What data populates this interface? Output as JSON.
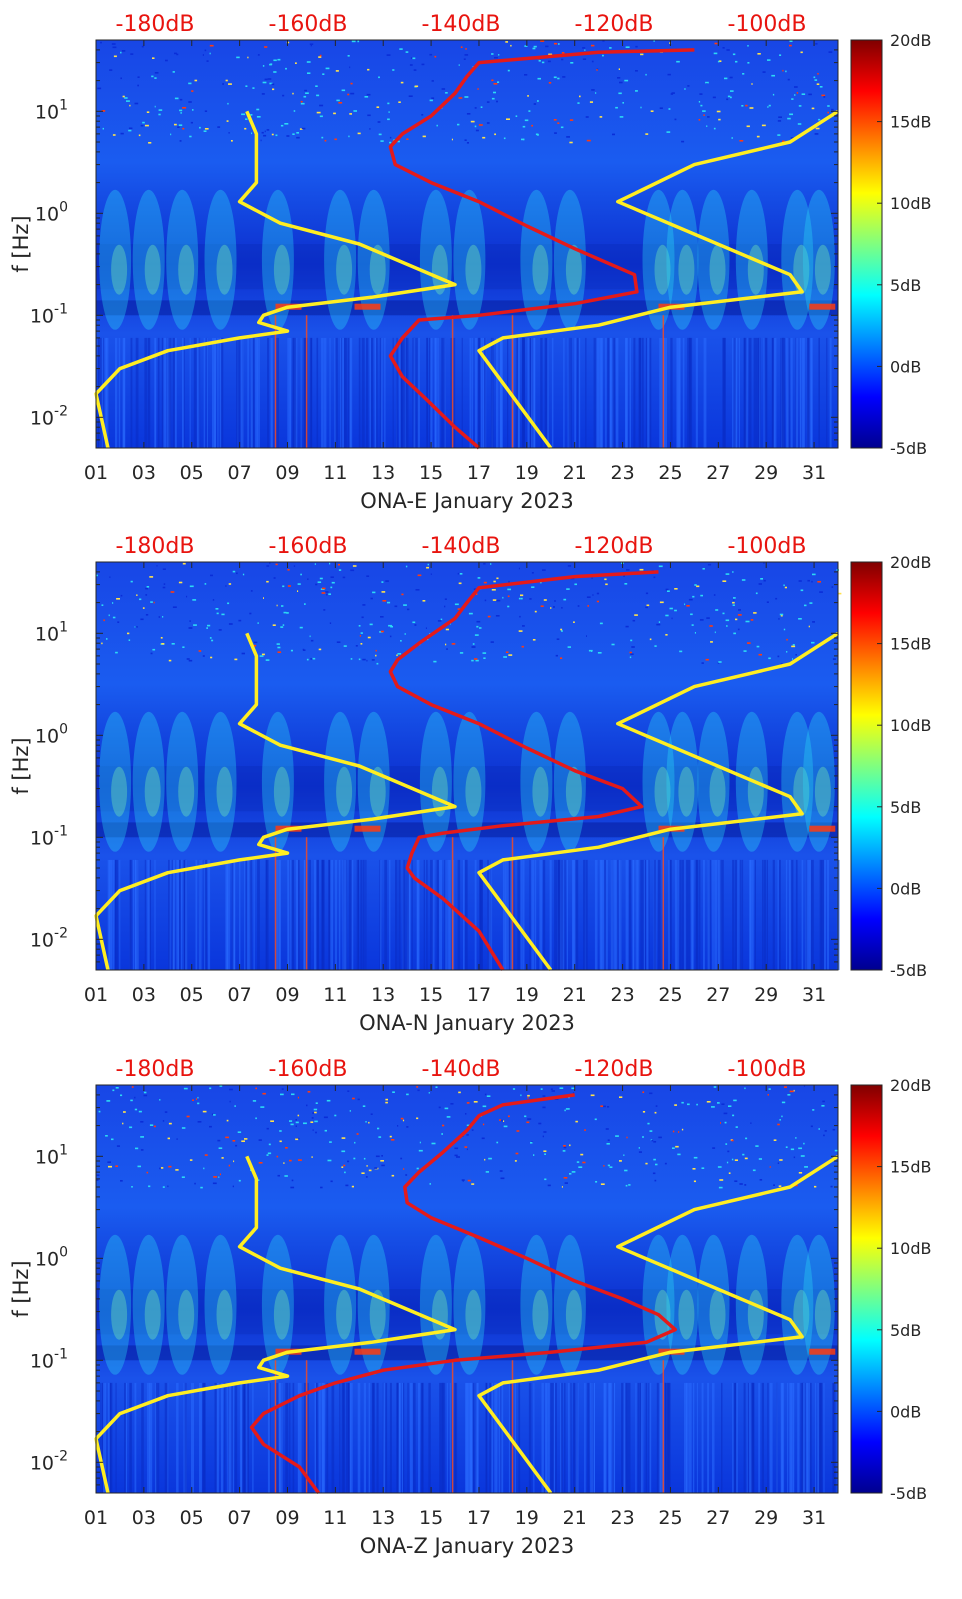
{
  "chart_data": [
    {
      "type": "heatmap",
      "title": "",
      "xlabel": "ONA-E January 2023",
      "ylabel": "f [Hz]",
      "x_ticks": [
        "01",
        "03",
        "05",
        "07",
        "09",
        "11",
        "13",
        "15",
        "17",
        "19",
        "21",
        "23",
        "25",
        "27",
        "29",
        "31"
      ],
      "x_range": [
        1,
        32
      ],
      "y_scale": "log",
      "y_range": [
        0.005,
        50
      ],
      "y_ticks": [
        {
          "value": 10,
          "base": "10",
          "exp": "1"
        },
        {
          "value": 1,
          "base": "10",
          "exp": "0"
        },
        {
          "value": 0.1,
          "base": "10",
          "exp": "-1"
        },
        {
          "value": 0.01,
          "base": "10",
          "exp": "-2"
        }
      ],
      "top_axis": {
        "labels": [
          "-180dB",
          "-160dB",
          "-140dB",
          "-120dB",
          "-100dB"
        ],
        "color": "#e8140f"
      },
      "colorbar": {
        "range": [
          -5,
          20
        ],
        "labels": [
          "20dB",
          "15dB",
          "10dB",
          "5dB",
          "0dB",
          "-5dB"
        ]
      },
      "colors": {
        "background": "#0a2ed8",
        "hot": "#ff3b0f",
        "mid": "#2bd9f5",
        "red_curve": "#e41a1a",
        "yellow_curve": "#ffee22"
      },
      "curves": {
        "red_psd": [
          [
            26,
            40
          ],
          [
            22,
            38
          ],
          [
            17,
            30
          ],
          [
            16.5,
            22
          ],
          [
            16,
            15
          ],
          [
            15,
            9
          ],
          [
            13.8,
            6
          ],
          [
            13.3,
            4.5
          ],
          [
            13.5,
            3
          ],
          [
            15,
            2
          ],
          [
            17,
            1.3
          ],
          [
            19,
            0.75
          ],
          [
            21,
            0.45
          ],
          [
            23.5,
            0.25
          ],
          [
            23.6,
            0.17
          ],
          [
            21,
            0.13
          ],
          [
            17,
            0.1
          ],
          [
            14.5,
            0.09
          ],
          [
            13.8,
            0.06
          ],
          [
            13.3,
            0.04
          ],
          [
            13.8,
            0.025
          ],
          [
            14.8,
            0.015
          ],
          [
            16,
            0.008
          ],
          [
            17,
            0.005
          ]
        ],
        "yellow_lnm": [
          [
            7.3,
            10
          ],
          [
            7.7,
            6
          ],
          [
            7.7,
            3
          ],
          [
            7.7,
            2
          ],
          [
            7,
            1.3
          ],
          [
            8.7,
            0.8
          ],
          [
            12,
            0.5
          ],
          [
            16,
            0.2
          ],
          [
            12.5,
            0.15
          ],
          [
            9,
            0.12
          ],
          [
            8,
            0.1
          ],
          [
            7.8,
            0.085
          ],
          [
            9,
            0.07
          ],
          [
            7,
            0.06
          ],
          [
            4,
            0.045
          ],
          [
            2,
            0.03
          ],
          [
            1,
            0.017
          ],
          [
            1.5,
            0.005
          ]
        ],
        "yellow_hnm": [
          [
            32,
            10
          ],
          [
            30,
            5
          ],
          [
            26,
            3
          ],
          [
            22.8,
            1.3
          ],
          [
            30,
            0.25
          ],
          [
            30.5,
            0.17
          ],
          [
            25,
            0.12
          ],
          [
            22,
            0.08
          ],
          [
            18,
            0.06
          ],
          [
            17,
            0.045
          ],
          [
            20,
            0.005
          ]
        ]
      }
    },
    {
      "type": "heatmap",
      "title": "",
      "xlabel": "ONA-N January 2023",
      "ylabel": "f [Hz]",
      "x_ticks": [
        "01",
        "03",
        "05",
        "07",
        "09",
        "11",
        "13",
        "15",
        "17",
        "19",
        "21",
        "23",
        "25",
        "27",
        "29",
        "31"
      ],
      "x_range": [
        1,
        32
      ],
      "y_scale": "log",
      "y_range": [
        0.005,
        50
      ],
      "y_ticks": [
        {
          "value": 10,
          "base": "10",
          "exp": "1"
        },
        {
          "value": 1,
          "base": "10",
          "exp": "0"
        },
        {
          "value": 0.1,
          "base": "10",
          "exp": "-1"
        },
        {
          "value": 0.01,
          "base": "10",
          "exp": "-2"
        }
      ],
      "top_axis": {
        "labels": [
          "-180dB",
          "-160dB",
          "-140dB",
          "-120dB",
          "-100dB"
        ],
        "color": "#e8140f"
      },
      "colorbar": {
        "range": [
          -5,
          20
        ],
        "labels": [
          "20dB",
          "15dB",
          "10dB",
          "5dB",
          "0dB",
          "-5dB"
        ]
      },
      "colors": {
        "background": "#0a2ed8",
        "hot": "#ff3b0f",
        "mid": "#2bd9f5",
        "red_curve": "#e41a1a",
        "yellow_curve": "#ffee22"
      },
      "curves": {
        "red_psd": [
          [
            24.5,
            40
          ],
          [
            21,
            36
          ],
          [
            17,
            28
          ],
          [
            16.5,
            20
          ],
          [
            16,
            14
          ],
          [
            14.5,
            8
          ],
          [
            13.6,
            5.5
          ],
          [
            13.3,
            4.2
          ],
          [
            13.6,
            3
          ],
          [
            15,
            2
          ],
          [
            17,
            1.3
          ],
          [
            19,
            0.75
          ],
          [
            21,
            0.45
          ],
          [
            23,
            0.3
          ],
          [
            23.8,
            0.2
          ],
          [
            22,
            0.16
          ],
          [
            18,
            0.13
          ],
          [
            15.5,
            0.11
          ],
          [
            14.5,
            0.1
          ],
          [
            14.2,
            0.07
          ],
          [
            14,
            0.05
          ],
          [
            14.3,
            0.04
          ],
          [
            15.5,
            0.025
          ],
          [
            17,
            0.012
          ],
          [
            18,
            0.005
          ]
        ],
        "yellow_lnm": [
          [
            7.3,
            10
          ],
          [
            7.7,
            6
          ],
          [
            7.7,
            3
          ],
          [
            7.7,
            2
          ],
          [
            7,
            1.3
          ],
          [
            8.7,
            0.8
          ],
          [
            12,
            0.5
          ],
          [
            16,
            0.2
          ],
          [
            12.5,
            0.15
          ],
          [
            9,
            0.12
          ],
          [
            8,
            0.1
          ],
          [
            7.8,
            0.085
          ],
          [
            9,
            0.07
          ],
          [
            7,
            0.06
          ],
          [
            4,
            0.045
          ],
          [
            2,
            0.03
          ],
          [
            1,
            0.017
          ],
          [
            1.5,
            0.005
          ]
        ],
        "yellow_hnm": [
          [
            32,
            10
          ],
          [
            30,
            5
          ],
          [
            26,
            3
          ],
          [
            22.8,
            1.3
          ],
          [
            30,
            0.25
          ],
          [
            30.5,
            0.17
          ],
          [
            25,
            0.12
          ],
          [
            22,
            0.08
          ],
          [
            18,
            0.06
          ],
          [
            17,
            0.045
          ],
          [
            20,
            0.005
          ]
        ]
      }
    },
    {
      "type": "heatmap",
      "title": "",
      "xlabel": "ONA-Z January 2023",
      "ylabel": "f [Hz]",
      "x_ticks": [
        "01",
        "03",
        "05",
        "07",
        "09",
        "11",
        "13",
        "15",
        "17",
        "19",
        "21",
        "23",
        "25",
        "27",
        "29",
        "31"
      ],
      "x_range": [
        1,
        32
      ],
      "y_scale": "log",
      "y_range": [
        0.005,
        50
      ],
      "y_ticks": [
        {
          "value": 10,
          "base": "10",
          "exp": "1"
        },
        {
          "value": 1,
          "base": "10",
          "exp": "0"
        },
        {
          "value": 0.1,
          "base": "10",
          "exp": "-1"
        },
        {
          "value": 0.01,
          "base": "10",
          "exp": "-2"
        }
      ],
      "top_axis": {
        "labels": [
          "-180dB",
          "-160dB",
          "-140dB",
          "-120dB",
          "-100dB"
        ],
        "color": "#e8140f"
      },
      "colorbar": {
        "range": [
          -5,
          20
        ],
        "labels": [
          "20dB",
          "15dB",
          "10dB",
          "5dB",
          "0dB",
          "-5dB"
        ]
      },
      "colors": {
        "background": "#0a2ed8",
        "hot": "#ff3b0f",
        "mid": "#2bd9f5",
        "red_curve": "#e41a1a",
        "yellow_curve": "#ffee22"
      },
      "curves": {
        "red_psd": [
          [
            21,
            40
          ],
          [
            18,
            32
          ],
          [
            17,
            25
          ],
          [
            16.5,
            18
          ],
          [
            15.5,
            11
          ],
          [
            14.5,
            7
          ],
          [
            13.9,
            5
          ],
          [
            14,
            3.5
          ],
          [
            15,
            2.5
          ],
          [
            17,
            1.6
          ],
          [
            19,
            1
          ],
          [
            21,
            0.6
          ],
          [
            23,
            0.4
          ],
          [
            24.5,
            0.28
          ],
          [
            25.2,
            0.2
          ],
          [
            24,
            0.15
          ],
          [
            20,
            0.12
          ],
          [
            16,
            0.1
          ],
          [
            13,
            0.08
          ],
          [
            11,
            0.06
          ],
          [
            9.5,
            0.045
          ],
          [
            8,
            0.03
          ],
          [
            7.5,
            0.022
          ],
          [
            8,
            0.015
          ],
          [
            9.5,
            0.009
          ],
          [
            10.3,
            0.005
          ]
        ],
        "yellow_lnm": [
          [
            7.3,
            10
          ],
          [
            7.7,
            6
          ],
          [
            7.7,
            3
          ],
          [
            7.7,
            2
          ],
          [
            7,
            1.3
          ],
          [
            8.7,
            0.8
          ],
          [
            12,
            0.5
          ],
          [
            16,
            0.2
          ],
          [
            12.5,
            0.15
          ],
          [
            9,
            0.12
          ],
          [
            8,
            0.1
          ],
          [
            7.8,
            0.085
          ],
          [
            9,
            0.07
          ],
          [
            7,
            0.06
          ],
          [
            4,
            0.045
          ],
          [
            2,
            0.03
          ],
          [
            1,
            0.017
          ],
          [
            1.5,
            0.005
          ]
        ],
        "yellow_hnm": [
          [
            32,
            10
          ],
          [
            30,
            5
          ],
          [
            26,
            3
          ],
          [
            22.8,
            1.3
          ],
          [
            30,
            0.25
          ],
          [
            30.5,
            0.17
          ],
          [
            25,
            0.12
          ],
          [
            22,
            0.08
          ],
          [
            18,
            0.06
          ],
          [
            17,
            0.045
          ],
          [
            20,
            0.005
          ]
        ]
      }
    }
  ]
}
